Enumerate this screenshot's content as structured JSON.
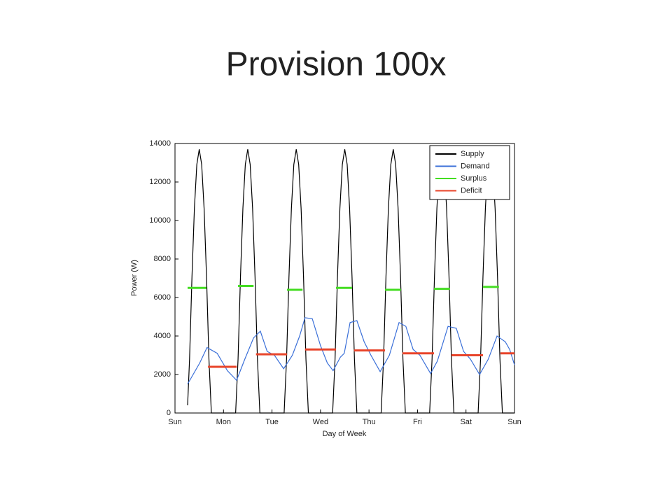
{
  "slide_title": "Provision 100x",
  "chart_data": {
    "type": "line",
    "xlabel": "Day of Week",
    "ylabel": "Power (W)",
    "xlim": [
      0,
      7
    ],
    "ylim": [
      0,
      14000
    ],
    "xticks": [
      {
        "value": 0,
        "label": "Sun"
      },
      {
        "value": 1,
        "label": "Mon"
      },
      {
        "value": 2,
        "label": "Tue"
      },
      {
        "value": 3,
        "label": "Wed"
      },
      {
        "value": 4,
        "label": "Thu"
      },
      {
        "value": 5,
        "label": "Fri"
      },
      {
        "value": 6,
        "label": "Sat"
      },
      {
        "value": 7,
        "label": "Sun"
      }
    ],
    "yticks": [
      0,
      2000,
      4000,
      6000,
      8000,
      10000,
      12000,
      14000
    ],
    "grid": false,
    "legend": "upper right",
    "series": [
      {
        "name": "Supply",
        "color": "#000000",
        "x": [
          0.26,
          0.3,
          0.35,
          0.4,
          0.45,
          0.5,
          0.55,
          0.6,
          0.65,
          0.7,
          0.75,
          1.25,
          1.3,
          1.35,
          1.4,
          1.45,
          1.5,
          1.55,
          1.6,
          1.65,
          1.7,
          1.75,
          2.25,
          2.3,
          2.35,
          2.4,
          2.45,
          2.5,
          2.55,
          2.6,
          2.65,
          2.7,
          2.75,
          3.25,
          3.3,
          3.35,
          3.4,
          3.45,
          3.5,
          3.55,
          3.6,
          3.65,
          3.7,
          3.75,
          4.25,
          4.3,
          4.35,
          4.4,
          4.45,
          4.5,
          4.55,
          4.6,
          4.65,
          4.7,
          4.75,
          5.25,
          5.3,
          5.35,
          5.4,
          5.45,
          5.5,
          5.55,
          5.6,
          5.65,
          5.7,
          5.75,
          6.25,
          6.3,
          6.35,
          6.4,
          6.45,
          6.5,
          6.55,
          6.6,
          6.65,
          6.7,
          6.75,
          7
        ],
        "values": [
          400,
          2790,
          7080,
          10630,
          12910,
          13700,
          12910,
          10630,
          7080,
          2790,
          0,
          0,
          2790,
          7080,
          10630,
          12910,
          13700,
          12910,
          10630,
          7080,
          2790,
          0,
          0,
          2790,
          7080,
          10630,
          12910,
          13700,
          12910,
          10630,
          7080,
          2790,
          0,
          0,
          2790,
          7080,
          10630,
          12910,
          13700,
          12910,
          10630,
          7080,
          2790,
          0,
          0,
          2790,
          7080,
          10630,
          12910,
          13700,
          12910,
          10630,
          7080,
          2790,
          0,
          0,
          2790,
          7080,
          10630,
          12910,
          13700,
          12910,
          10630,
          7080,
          2790,
          0,
          0,
          2790,
          7080,
          10630,
          12910,
          13700,
          12910,
          10630,
          7080,
          2790,
          0,
          0
        ]
      },
      {
        "name": "Demand",
        "color": "#3a6fd8",
        "x": [
          0.26,
          0.51,
          0.66,
          0.87,
          1.08,
          1.27,
          1.44,
          1.62,
          1.76,
          1.9,
          2.05,
          2.24,
          2.42,
          2.57,
          2.68,
          2.83,
          3.0,
          3.14,
          3.26,
          3.41,
          3.49,
          3.61,
          3.75,
          3.9,
          4.04,
          4.23,
          4.42,
          4.62,
          4.76,
          4.91,
          5.05,
          5.27,
          5.41,
          5.63,
          5.8,
          5.95,
          6.09,
          6.28,
          6.46,
          6.64,
          6.81,
          6.9,
          7.0
        ],
        "values": [
          1500,
          2600,
          3400,
          3100,
          2200,
          1700,
          2800,
          3900,
          4250,
          3200,
          3000,
          2300,
          3000,
          4000,
          4950,
          4900,
          3500,
          2600,
          2200,
          2900,
          3100,
          4700,
          4800,
          3700,
          3000,
          2150,
          3000,
          4700,
          4500,
          3300,
          3000,
          2050,
          2700,
          4500,
          4400,
          3200,
          2800,
          2000,
          2800,
          4000,
          3700,
          3300,
          2500
        ]
      },
      {
        "name": "Surplus",
        "color": "#44dd22",
        "x": [
          0.26,
          0.65,
          1.0,
          1.3,
          1.62,
          2.0,
          2.31,
          2.63,
          3.0,
          3.32,
          3.65,
          4.0,
          4.33,
          4.66,
          5.0,
          5.34,
          5.67,
          6.0,
          6.35,
          6.68
        ],
        "values": [
          6500,
          6500,
          null,
          6600,
          6600,
          null,
          6400,
          6400,
          null,
          6500,
          6500,
          null,
          6400,
          6400,
          null,
          6450,
          6450,
          null,
          6550,
          6550
        ]
      },
      {
        "name": "Deficit",
        "color": "#e8442a",
        "x": [
          0.68,
          1.27,
          1.5,
          1.67,
          2.31,
          2.5,
          2.68,
          3.32,
          3.5,
          3.69,
          4.33,
          4.5,
          4.69,
          5.34,
          5.5,
          5.7,
          6.35,
          6.5,
          6.71,
          7.0
        ],
        "values": [
          2400,
          2400,
          null,
          3050,
          3050,
          null,
          3300,
          3300,
          null,
          3250,
          3250,
          null,
          3100,
          3100,
          null,
          3000,
          3000,
          null,
          3100,
          3100
        ]
      }
    ]
  }
}
